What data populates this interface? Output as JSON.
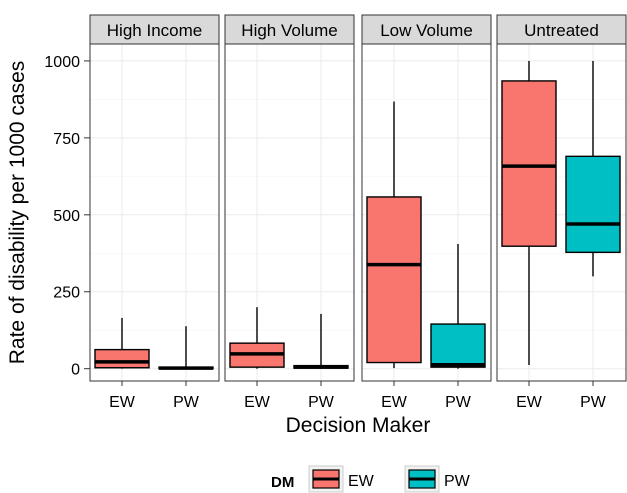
{
  "chart_data": {
    "type": "boxplot",
    "xlabel": "Decision Maker",
    "ylabel": "Rate of disability per 1000 cases",
    "ylim": [
      -40,
      1055
    ],
    "yticks": [
      0,
      250,
      500,
      750,
      1000
    ],
    "grid": true,
    "facets": [
      {
        "name": "High Income",
        "boxes": [
          {
            "group": "EW",
            "whisker_low": 0,
            "q1": 3,
            "median": 22,
            "q3": 62,
            "whisker_high": 165
          },
          {
            "group": "PW",
            "whisker_low": 0,
            "q1": 0,
            "median": 2,
            "q3": 5,
            "whisker_high": 138
          }
        ]
      },
      {
        "name": "High Volume",
        "boxes": [
          {
            "group": "EW",
            "whisker_low": 0,
            "q1": 5,
            "median": 48,
            "q3": 83,
            "whisker_high": 200
          },
          {
            "group": "PW",
            "whisker_low": 0,
            "q1": 2,
            "median": 5,
            "q3": 10,
            "whisker_high": 178
          }
        ]
      },
      {
        "name": "Low Volume",
        "boxes": [
          {
            "group": "EW",
            "whisker_low": 2,
            "q1": 20,
            "median": 338,
            "q3": 558,
            "whisker_high": 868
          },
          {
            "group": "PW",
            "whisker_low": 0,
            "q1": 5,
            "median": 13,
            "q3": 145,
            "whisker_high": 405
          }
        ]
      },
      {
        "name": "Untreated",
        "boxes": [
          {
            "group": "EW",
            "whisker_low": 12,
            "q1": 398,
            "median": 658,
            "q3": 935,
            "whisker_high": 1000
          },
          {
            "group": "PW",
            "whisker_low": 300,
            "q1": 378,
            "median": 470,
            "q3": 690,
            "whisker_high": 1000
          }
        ]
      }
    ],
    "legend": {
      "title": "DM",
      "position": "bottom",
      "entries": [
        {
          "label": "EW",
          "color": "#F8766D"
        },
        {
          "label": "PW",
          "color": "#00BFC4"
        }
      ]
    },
    "colors": {
      "EW": "#F8766D",
      "PW": "#00BFC4",
      "strip": "#d9d9d9",
      "grid": "#ebebeb"
    }
  }
}
